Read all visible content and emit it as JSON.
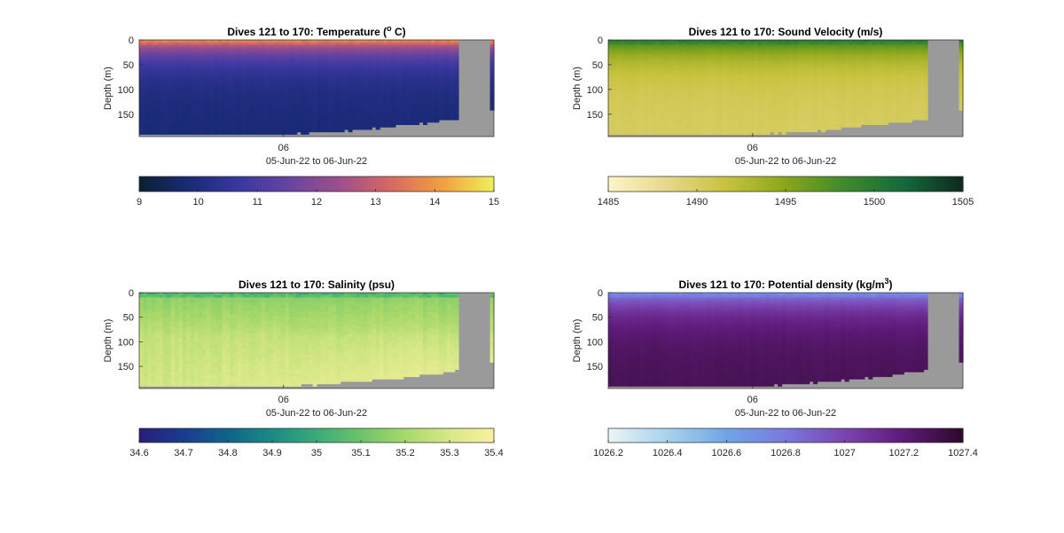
{
  "figure": {
    "background": "#ffffff",
    "nodata_color": "#9a9a9a"
  },
  "chart_data": [
    {
      "type": "heatmap",
      "title": "Dives 121 to 170: Temperature (",
      "title_sup": "o",
      "title_end": " C)",
      "ylabel": "Depth (m)",
      "xlabel": "05-Jun-22 to 06-Jun-22",
      "x_tick_labels": [
        "06"
      ],
      "y_ticks": [
        0,
        50,
        100,
        150
      ],
      "ylim": [
        0,
        195
      ],
      "y_reversed": true,
      "colorbar": {
        "ticks": [
          "9",
          "10",
          "11",
          "12",
          "13",
          "14",
          "15"
        ],
        "range": [
          9,
          15
        ],
        "colors": [
          "#0c2030",
          "#1a2b78",
          "#3b38a0",
          "#6a44a0",
          "#a0508a",
          "#d86a60",
          "#f2a040",
          "#f0f05a"
        ]
      },
      "field_summary": {
        "surface": 13.5,
        "mid": 10.3,
        "deep": 9.8
      }
    },
    {
      "type": "heatmap",
      "title": "Dives 121 to 170: Sound Velocity (m/s)",
      "ylabel": "Depth (m)",
      "xlabel": "05-Jun-22 to 06-Jun-22",
      "x_tick_labels": [
        "06"
      ],
      "y_ticks": [
        0,
        50,
        100,
        150
      ],
      "ylim": [
        0,
        195
      ],
      "y_reversed": true,
      "colorbar": {
        "ticks": [
          "1485",
          "1490",
          "1495",
          "1500",
          "1505"
        ],
        "range": [
          1485,
          1505
        ],
        "colors": [
          "#fcf5c8",
          "#e6d88a",
          "#c8c23e",
          "#8aa61a",
          "#3e8a2c",
          "#146a3c",
          "#0e2a1a"
        ]
      },
      "field_summary": {
        "surface": 1499,
        "mid": 1492,
        "deep": 1490
      }
    },
    {
      "type": "heatmap",
      "title": "Dives 121 to 170: Salinity (psu)",
      "ylabel": "Depth (m)",
      "xlabel": "05-Jun-22 to 06-Jun-22",
      "x_tick_labels": [
        "06"
      ],
      "y_ticks": [
        0,
        50,
        100,
        150
      ],
      "ylim": [
        0,
        195
      ],
      "y_reversed": true,
      "colorbar": {
        "ticks": [
          "34.6",
          "34.7",
          "34.8",
          "34.9",
          "35",
          "35.1",
          "35.2",
          "35.3",
          "35.4"
        ],
        "range": [
          34.6,
          35.4
        ],
        "colors": [
          "#2a1e7a",
          "#1a3c90",
          "#0f6488",
          "#1c8a86",
          "#3aaa78",
          "#6cc46a",
          "#a8d86a",
          "#d8e888",
          "#f8f0a0"
        ]
      },
      "field_summary": {
        "surface": 35.15,
        "mid": 35.25,
        "deep": 35.35
      }
    },
    {
      "type": "heatmap",
      "title": "Dives 121 to 170: Potential density (kg/m",
      "title_sup": "3",
      "title_end": ")",
      "ylabel": "Depth (m)",
      "xlabel": "05-Jun-22 to 06-Jun-22",
      "x_tick_labels": [
        "06"
      ],
      "y_ticks": [
        0,
        50,
        100,
        150
      ],
      "ylim": [
        0,
        195
      ],
      "y_reversed": true,
      "colorbar": {
        "ticks": [
          "1026.2",
          "1026.4",
          "1026.6",
          "1026.8",
          "1027",
          "1027.2",
          "1027.4"
        ],
        "range": [
          1026.2,
          1027.4
        ],
        "colors": [
          "#eaf4f6",
          "#a8d2ec",
          "#6ea6e6",
          "#7a78dc",
          "#7a44b0",
          "#5e1a78",
          "#2c0a28"
        ]
      },
      "field_summary": {
        "surface": 1026.75,
        "mid": 1027.15,
        "deep": 1027.3
      }
    }
  ]
}
